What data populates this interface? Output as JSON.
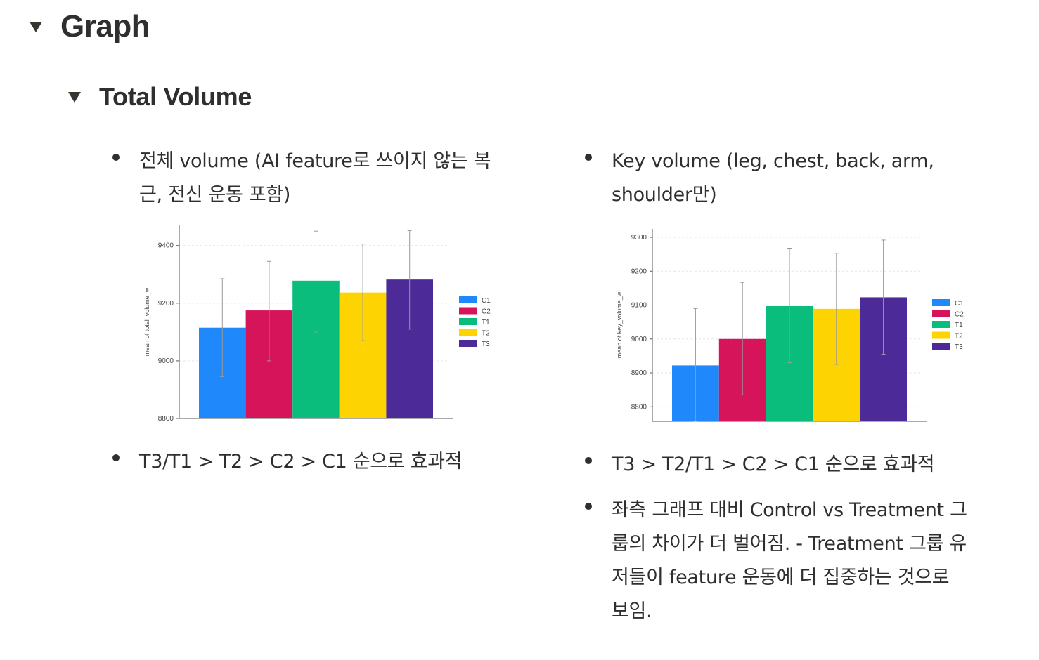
{
  "heading1": {
    "label": "Graph"
  },
  "heading2": {
    "label": "Total Volume"
  },
  "left": {
    "bullet1": "전체 volume (AI feature로 쓰이지 않는 복근, 전신 운동 포함)",
    "bullet2": "T3/T1 > T2 > C2 > C1 순으로 효과적"
  },
  "right": {
    "bullet1": "Key volume (leg, chest, back, arm, shoulder만)",
    "bullet2": "T3 > T2/T1 > C2 > C1 순으로 효과적",
    "bullet3": "좌측 그래프 대비 Control vs Treatment 그룹의 차이가 더 벌어짐. - Treatment 그룹 유저들이 feature 운동에 더 집중하는 것으로 보임."
  },
  "colors": {
    "C1": "#1f88fb",
    "C2": "#d5145a",
    "T1": "#0bbd7c",
    "T2": "#fdd402",
    "T3": "#4c2a98"
  },
  "chart_data": [
    {
      "type": "bar",
      "title": "",
      "xlabel": "",
      "ylabel": "mean of total_volume_w",
      "ylim": [
        8800,
        9470
      ],
      "yticks": [
        8800,
        9000,
        9200,
        9400
      ],
      "series": [
        {
          "name": "C1",
          "value": 9115,
          "err_low": 8945,
          "err_high": 9285,
          "color": "#1f88fb"
        },
        {
          "name": "C2",
          "value": 9175,
          "err_low": 9000,
          "err_high": 9345,
          "color": "#d5145a"
        },
        {
          "name": "T1",
          "value": 9278,
          "err_low": 9100,
          "err_high": 9450,
          "color": "#0bbd7c"
        },
        {
          "name": "T2",
          "value": 9237,
          "err_low": 9070,
          "err_high": 9405,
          "color": "#fdd402"
        },
        {
          "name": "T3",
          "value": 9282,
          "err_low": 9110,
          "err_high": 9452,
          "color": "#4c2a98"
        }
      ],
      "legend": "right",
      "grid": true
    },
    {
      "type": "bar",
      "title": "",
      "xlabel": "",
      "ylabel": "mean of key_volume_w",
      "ylim": [
        8757,
        9325
      ],
      "yticks": [
        8800,
        8900,
        9000,
        9100,
        9200,
        9300
      ],
      "series": [
        {
          "name": "C1",
          "value": 8922,
          "err_low": 8757,
          "err_high": 9090,
          "color": "#1f88fb"
        },
        {
          "name": "C2",
          "value": 9000,
          "err_low": 8835,
          "err_high": 9167,
          "color": "#d5145a"
        },
        {
          "name": "T1",
          "value": 9097,
          "err_low": 8930,
          "err_high": 9268,
          "color": "#0bbd7c"
        },
        {
          "name": "T2",
          "value": 9089,
          "err_low": 8925,
          "err_high": 9253,
          "color": "#fdd402"
        },
        {
          "name": "T3",
          "value": 9123,
          "err_low": 8955,
          "err_high": 9292,
          "color": "#4c2a98"
        }
      ],
      "legend": "right",
      "grid": true
    }
  ]
}
